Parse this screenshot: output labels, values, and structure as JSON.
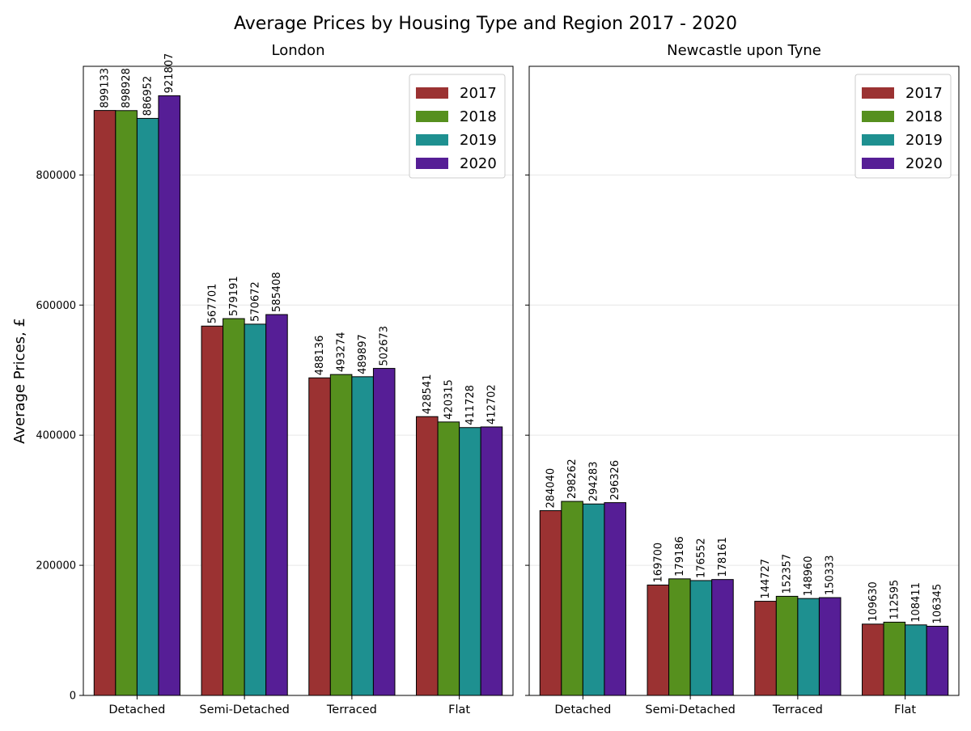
{
  "title": "Average Prices by Housing Type and Region 2017 - 2020",
  "colors": {
    "2017": "#9b3232",
    "2018": "#56901e",
    "2019": "#1e9090",
    "2020": "#561e96",
    "edge": "#000000",
    "grid": "#e6e6e6"
  },
  "chart_data": [
    {
      "type": "bar",
      "title": "London",
      "ylabel": "Average Prices, £",
      "ylim": [
        0,
        967000
      ],
      "yticks": [
        0,
        200000,
        400000,
        600000,
        800000
      ],
      "grid": "horizontal",
      "legend": "top-right",
      "categories": [
        "Detached",
        "Semi-Detached",
        "Terraced",
        "Flat"
      ],
      "series": [
        {
          "name": "2017",
          "color": "#9b3232",
          "values": [
            899133,
            567701,
            488136,
            428541
          ]
        },
        {
          "name": "2018",
          "color": "#56901e",
          "values": [
            898928,
            579191,
            493274,
            420315
          ]
        },
        {
          "name": "2019",
          "color": "#1e9090",
          "values": [
            886952,
            570672,
            489897,
            411728
          ]
        },
        {
          "name": "2020",
          "color": "#561e96",
          "values": [
            921807,
            585408,
            502673,
            412702
          ]
        }
      ]
    },
    {
      "type": "bar",
      "title": "Newcastle upon Tyne",
      "ylim": [
        0,
        967000
      ],
      "yticks": [
        0,
        200000,
        400000,
        600000,
        800000
      ],
      "grid": "horizontal",
      "legend": "top-right",
      "categories": [
        "Detached",
        "Semi-Detached",
        "Terraced",
        "Flat"
      ],
      "series": [
        {
          "name": "2017",
          "color": "#9b3232",
          "values": [
            284040,
            169700,
            144727,
            109630
          ]
        },
        {
          "name": "2018",
          "color": "#56901e",
          "values": [
            298262,
            179186,
            152357,
            112595
          ]
        },
        {
          "name": "2019",
          "color": "#1e9090",
          "values": [
            294283,
            176552,
            148960,
            108411
          ]
        },
        {
          "name": "2020",
          "color": "#561e96",
          "values": [
            296326,
            178161,
            150333,
            106345
          ]
        }
      ]
    }
  ]
}
